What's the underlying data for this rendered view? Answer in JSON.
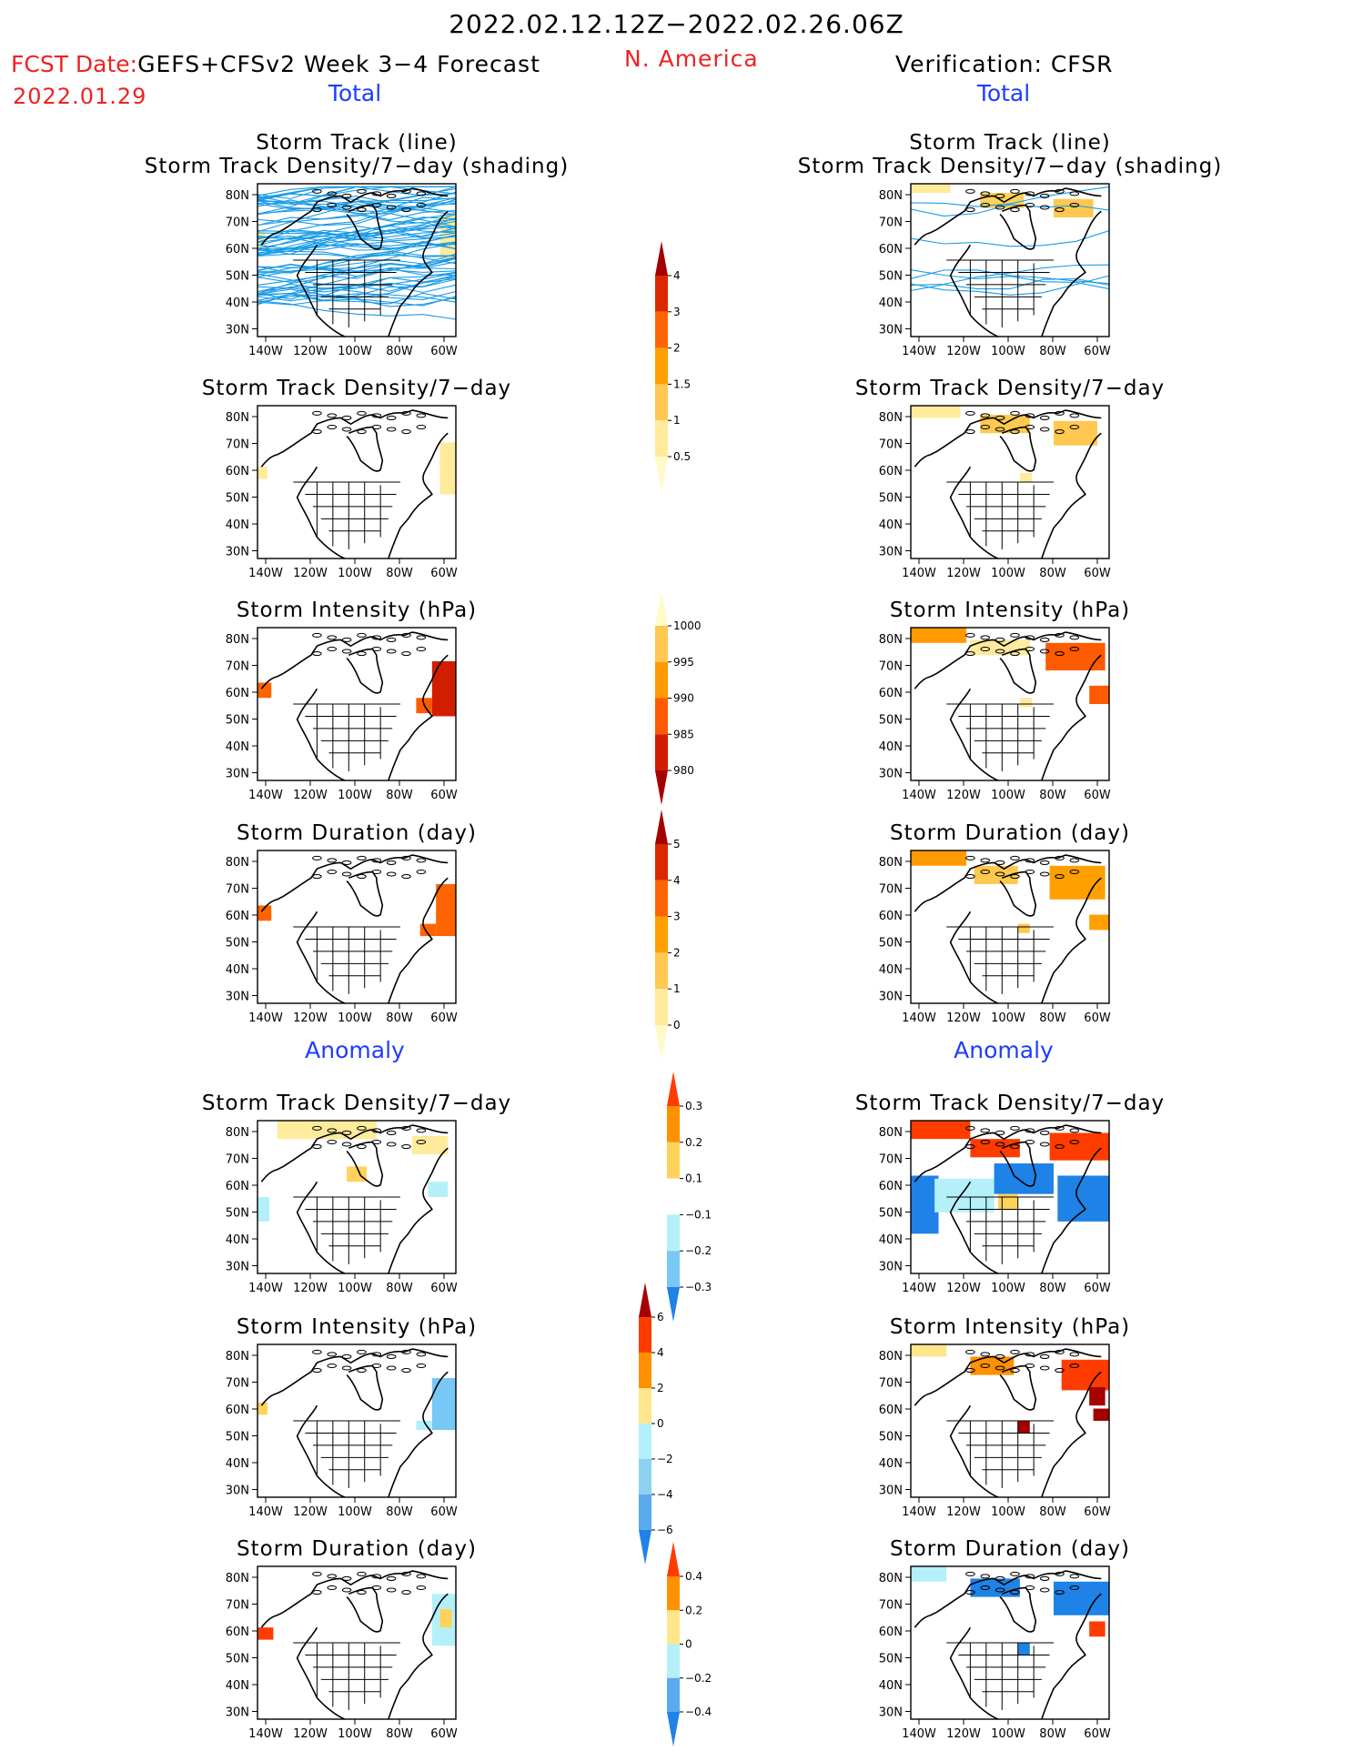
{
  "header": {
    "period": "2022.02.12.12Z−2022.02.26.06Z",
    "fcst_label": "FCST Date:",
    "fcst_date": "2022.01.29",
    "model": "GEFS+CFSv2 Week 3−4 Forecast",
    "region": "N. America",
    "verification": "Verification: CFSR",
    "left_total": "Total",
    "right_total": "Total",
    "left_anomaly": "Anomaly",
    "right_anomaly": "Anomaly"
  },
  "colors": {
    "red_text": "#ee2222",
    "blue_text": "#1e3cff",
    "track_line": "#1a9be6"
  },
  "axes": {
    "lat_ticks": [
      "80N",
      "70N",
      "60N",
      "50N",
      "40N",
      "30N"
    ],
    "lon_ticks": [
      "140W",
      "120W",
      "100W",
      "80W",
      "60W"
    ]
  },
  "panels": {
    "p0": {
      "title1": "Storm Track (line)",
      "title2": "Storm Track Density/7−day (shading)"
    },
    "p1": {
      "title1": "Storm Track Density/7−day"
    },
    "p2": {
      "title1": "Storm Intensity (hPa)"
    },
    "p3": {
      "title1": "Storm Duration (day)"
    },
    "p4": {
      "title1": "Storm Track Density/7−day"
    },
    "p5": {
      "title1": "Storm Intensity (hPa)"
    },
    "p6": {
      "title1": "Storm Duration (day)"
    },
    "q0": {
      "title1": "Storm Track (line)",
      "title2": "Storm Track Density/7−day (shading)"
    },
    "q1": {
      "title1": "Storm Track Density/7−day"
    },
    "q2": {
      "title1": "Storm Intensity (hPa)"
    },
    "q3": {
      "title1": "Storm Duration (day)"
    },
    "q4": {
      "title1": "Storm Track Density/7−day"
    },
    "q5": {
      "title1": "Storm Intensity (hPa)"
    },
    "q6": {
      "title1": "Storm Duration (day)"
    }
  },
  "colorbars": {
    "density": {
      "labels": [
        "4",
        "3",
        "2",
        "1.5",
        "1",
        "0.5"
      ],
      "colors": [
        "#a50000",
        "#dc2800",
        "#ff6400",
        "#ffa000",
        "#ffc850",
        "#ffeb9b",
        "#fffac8"
      ]
    },
    "intensity": {
      "labels": [
        "1000",
        "995",
        "990",
        "985",
        "980"
      ],
      "colors": [
        "#fffac8",
        "#ffc850",
        "#ff9a00",
        "#ff5a00",
        "#d21e00",
        "#a50000"
      ]
    },
    "duration": {
      "labels": [
        "5",
        "4",
        "3",
        "2",
        "1",
        "0"
      ],
      "colors": [
        "#a50000",
        "#dc2800",
        "#ff6400",
        "#ffa000",
        "#ffc850",
        "#ffeb9b",
        "#fffac8"
      ]
    },
    "density_anom": {
      "labels": [
        "0.3",
        "0.2",
        "0.1",
        "−0.1",
        "−0.2",
        "−0.3"
      ],
      "colors": [
        "#ff3c00",
        "#ff9000",
        "#ffd25a",
        "#ffffff",
        "#b4f0fa",
        "#78c8f5",
        "#1e82e6"
      ]
    },
    "intensity_anom": {
      "labels": [
        "6",
        "4",
        "2",
        "0",
        "−2",
        "−4",
        "−6"
      ],
      "colors": [
        "#a50000",
        "#ff3c00",
        "#ff9000",
        "#ffe68c",
        "#b4f0fa",
        "#8cd2f0",
        "#5aaaf0",
        "#1e82e6"
      ]
    },
    "duration_anom": {
      "labels": [
        "0.4",
        "0.2",
        "0",
        "−0.2",
        "−0.4"
      ],
      "colors": [
        "#ff3c00",
        "#ff9000",
        "#ffe68c",
        "#b4f0fa",
        "#5aaaf0",
        "#1e82e6"
      ]
    }
  }
}
